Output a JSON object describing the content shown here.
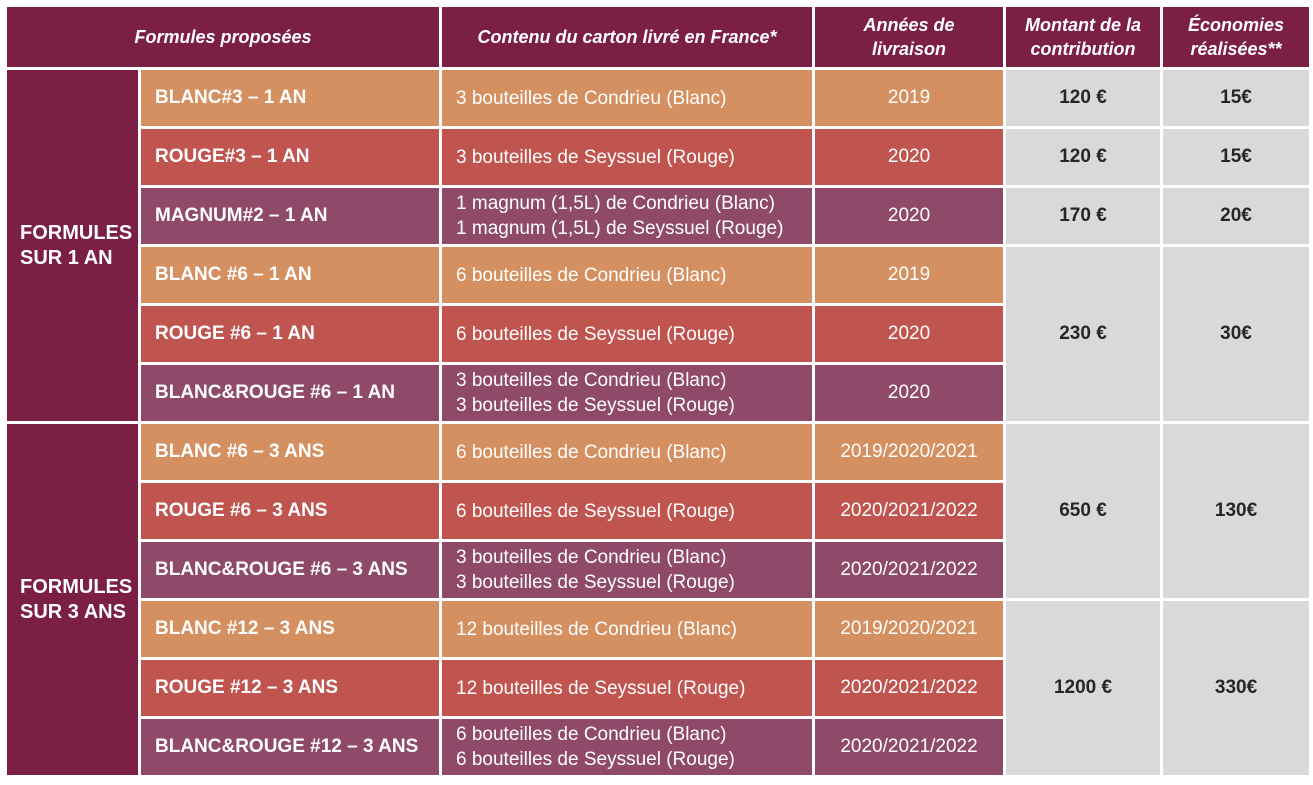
{
  "header": {
    "formules": "Formules proposées",
    "contenu": "Contenu du carton livré en France*",
    "annees": [
      "Années de",
      "livraison"
    ],
    "montant": [
      "Montant de la",
      "contribution"
    ],
    "economies": [
      "Économies",
      "réalisées**"
    ]
  },
  "groups": [
    {
      "label": [
        "FORMULES",
        "SUR 1 AN"
      ]
    },
    {
      "label": [
        "FORMULES",
        "SUR 3 ANS"
      ]
    }
  ],
  "rows": [
    {
      "name": "BLANC#3 – 1 AN",
      "content": [
        "3 bouteilles de Condrieu (Blanc)"
      ],
      "years": "2019",
      "amount": "120 €",
      "savings": "15€"
    },
    {
      "name": "ROUGE#3 – 1 AN",
      "content": [
        "3 bouteilles de Seyssuel (Rouge)"
      ],
      "years": "2020",
      "amount": "120 €",
      "savings": "15€"
    },
    {
      "name": "MAGNUM#2 – 1 AN",
      "content": [
        "1 magnum (1,5L) de Condrieu (Blanc)",
        "1 magnum (1,5L) de Seyssuel (Rouge)"
      ],
      "years": "2020",
      "amount": "170 €",
      "savings": "20€"
    },
    {
      "name": "BLANC #6 – 1 AN",
      "content": [
        "6 bouteilles de Condrieu (Blanc)"
      ],
      "years": "2019",
      "amount": "230 €",
      "savings": "30€"
    },
    {
      "name": "ROUGE #6 – 1 AN",
      "content": [
        "6 bouteilles de Seyssuel (Rouge)"
      ],
      "years": "2020"
    },
    {
      "name": "BLANC&ROUGE #6 – 1 AN",
      "content": [
        "3 bouteilles de Condrieu (Blanc)",
        "3 bouteilles de Seyssuel (Rouge)"
      ],
      "years": "2020"
    },
    {
      "name": "BLANC #6 – 3 ANS",
      "content": [
        "6 bouteilles de Condrieu (Blanc)"
      ],
      "years": "2019/2020/2021",
      "amount": "650 €",
      "savings": "130€"
    },
    {
      "name": "ROUGE #6 – 3 ANS",
      "content": [
        "6 bouteilles de Seyssuel (Rouge)"
      ],
      "years": "2020/2021/2022"
    },
    {
      "name": "BLANC&ROUGE #6 – 3 ANS",
      "content": [
        "3 bouteilles de Condrieu (Blanc)",
        "3 bouteilles de Seyssuel (Rouge)"
      ],
      "years": "2020/2021/2022"
    },
    {
      "name": "BLANC #12 – 3 ANS",
      "content": [
        "12 bouteilles de Condrieu (Blanc)"
      ],
      "years": "2019/2020/2021",
      "amount": "1200 €",
      "savings": "330€"
    },
    {
      "name": "ROUGE #12 – 3 ANS",
      "content": [
        "12 bouteilles de Seyssuel (Rouge)"
      ],
      "years": "2020/2021/2022"
    },
    {
      "name": "BLANC&ROUGE #12 – 3 ANS",
      "content": [
        "6 bouteilles de Condrieu (Blanc)",
        "6 bouteilles de Seyssuel (Rouge)"
      ],
      "years": "2020/2021/2022"
    }
  ],
  "colors": {
    "header_bg": "#7b1f45",
    "blanc_row": "#d49060",
    "rouge_row": "#c0544f",
    "mix_row": "#8e4a68",
    "amount_bg": "#d9d9d9"
  }
}
